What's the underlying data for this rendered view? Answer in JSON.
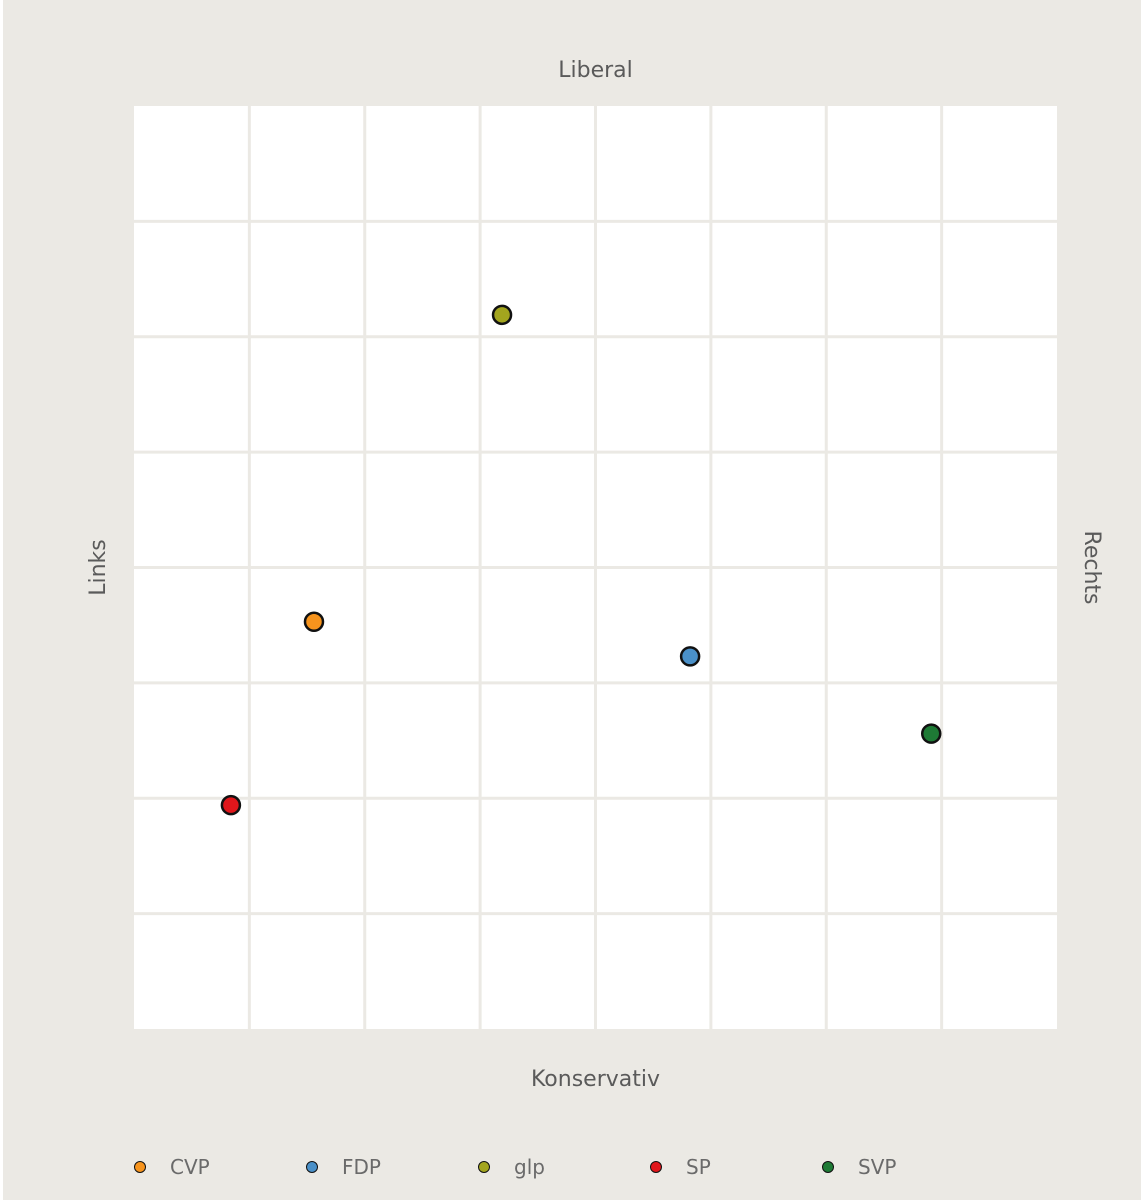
{
  "chart_data": {
    "type": "scatter",
    "title": "",
    "labels": {
      "top": "Liberal",
      "bottom": "Konservativ",
      "left": "Links",
      "right": "Rechts"
    },
    "xlim": [
      0,
      8
    ],
    "ylim": [
      0,
      8
    ],
    "grid": true,
    "legend_placement": "bottom",
    "series": [
      {
        "name": "CVP",
        "color": "#f7941d",
        "x": 1.56,
        "y": 3.53
      },
      {
        "name": "FDP",
        "color": "#4a90c8",
        "x": 4.82,
        "y": 3.23
      },
      {
        "name": "glp",
        "color": "#a3a51e",
        "x": 3.19,
        "y": 6.19
      },
      {
        "name": "SP",
        "color": "#e0161b",
        "x": 0.84,
        "y": 1.94
      },
      {
        "name": "SVP",
        "color": "#1e7a35",
        "x": 6.91,
        "y": 2.56
      }
    ]
  }
}
